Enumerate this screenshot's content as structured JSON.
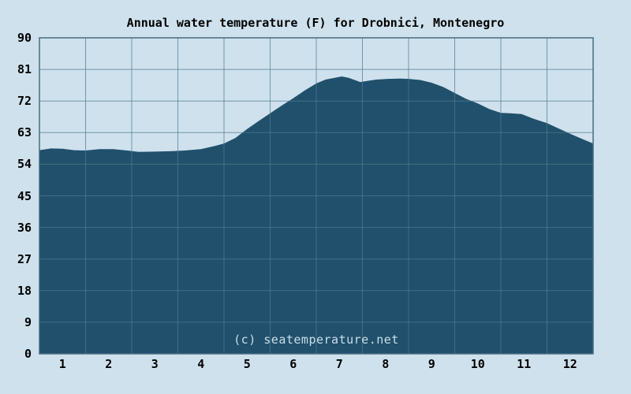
{
  "chart_data": {
    "type": "area",
    "title": "Annual water temperature (F) for Drobnici, Montenegro",
    "watermark": "(c) seatemperature.net",
    "xlabel": "",
    "ylabel": "",
    "categories": [
      "1",
      "2",
      "3",
      "4",
      "5",
      "6",
      "7",
      "8",
      "9",
      "10",
      "11",
      "12"
    ],
    "monthly_values_f": [
      58.2,
      58.1,
      57.7,
      58.9,
      64.1,
      72.8,
      78.2,
      78.1,
      76.4,
      71.5,
      67.5,
      62.9
    ],
    "curve_points_month_temp": [
      [
        0,
        58.0
      ],
      [
        0.25,
        58.5
      ],
      [
        0.5,
        58.4
      ],
      [
        0.75,
        58.0
      ],
      [
        1.0,
        57.9
      ],
      [
        1.3,
        58.3
      ],
      [
        1.6,
        58.3
      ],
      [
        1.9,
        57.9
      ],
      [
        2.15,
        57.5
      ],
      [
        2.5,
        57.6
      ],
      [
        2.85,
        57.7
      ],
      [
        3.15,
        57.9
      ],
      [
        3.5,
        58.3
      ],
      [
        3.8,
        59.2
      ],
      [
        4.0,
        59.9
      ],
      [
        4.25,
        61.5
      ],
      [
        4.5,
        64.0
      ],
      [
        4.75,
        66.3
      ],
      [
        5.0,
        68.5
      ],
      [
        5.25,
        70.7
      ],
      [
        5.5,
        72.8
      ],
      [
        5.75,
        75.0
      ],
      [
        6.0,
        77.0
      ],
      [
        6.2,
        78.1
      ],
      [
        6.4,
        78.6
      ],
      [
        6.55,
        79.0
      ],
      [
        6.7,
        78.6
      ],
      [
        6.85,
        77.9
      ],
      [
        6.95,
        77.4
      ],
      [
        7.1,
        77.7
      ],
      [
        7.3,
        78.1
      ],
      [
        7.55,
        78.3
      ],
      [
        7.8,
        78.4
      ],
      [
        8.0,
        78.3
      ],
      [
        8.25,
        78.0
      ],
      [
        8.5,
        77.2
      ],
      [
        8.75,
        76.0
      ],
      [
        9.0,
        74.3
      ],
      [
        9.25,
        72.6
      ],
      [
        9.5,
        71.3
      ],
      [
        9.75,
        69.7
      ],
      [
        10.0,
        68.6
      ],
      [
        10.2,
        68.5
      ],
      [
        10.45,
        68.3
      ],
      [
        10.7,
        67.0
      ],
      [
        11.0,
        65.7
      ],
      [
        11.25,
        64.2
      ],
      [
        11.55,
        62.4
      ],
      [
        11.8,
        61.0
      ],
      [
        12,
        59.9
      ]
    ],
    "ylim": [
      0,
      90
    ],
    "xlim": [
      0,
      12
    ],
    "y_ticks": [
      90,
      81,
      72,
      63,
      54,
      45,
      36,
      27,
      18,
      9,
      0
    ],
    "x_ticks": [
      "1",
      "2",
      "3",
      "4",
      "5",
      "6",
      "7",
      "8",
      "9",
      "10",
      "11",
      "12"
    ],
    "grid": true,
    "legend": "none",
    "colors": {
      "background": "#cee1ed",
      "area_fill": "#20506c",
      "gridline": "#54798e",
      "frame": "#486c82",
      "text": "#000000",
      "watermark_text": "#cddee8"
    }
  }
}
